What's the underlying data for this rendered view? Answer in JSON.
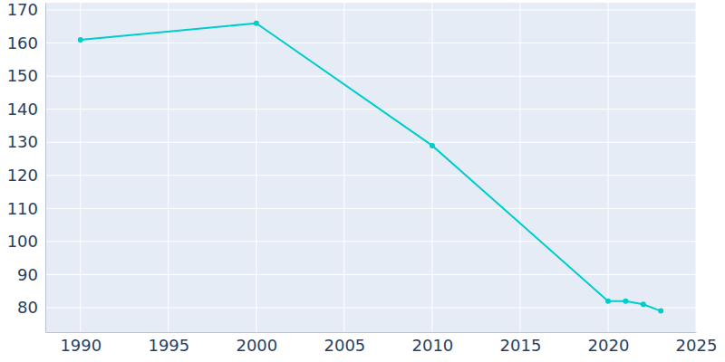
{
  "chart_data": {
    "type": "line",
    "x": [
      1990,
      2000,
      2010,
      2020,
      2021,
      2022,
      2023
    ],
    "values": [
      161,
      166,
      129,
      82,
      82,
      81,
      79
    ],
    "color": "#00cccc",
    "marker": "circle",
    "xlim": [
      1988,
      2025
    ],
    "xticks": [
      1990,
      1995,
      2000,
      2005,
      2010,
      2015,
      2020,
      2025
    ],
    "ylim": [
      72.6,
      172.2
    ],
    "yticks": [
      80,
      90,
      100,
      110,
      120,
      130,
      140,
      150,
      160,
      170
    ],
    "grid": true
  }
}
